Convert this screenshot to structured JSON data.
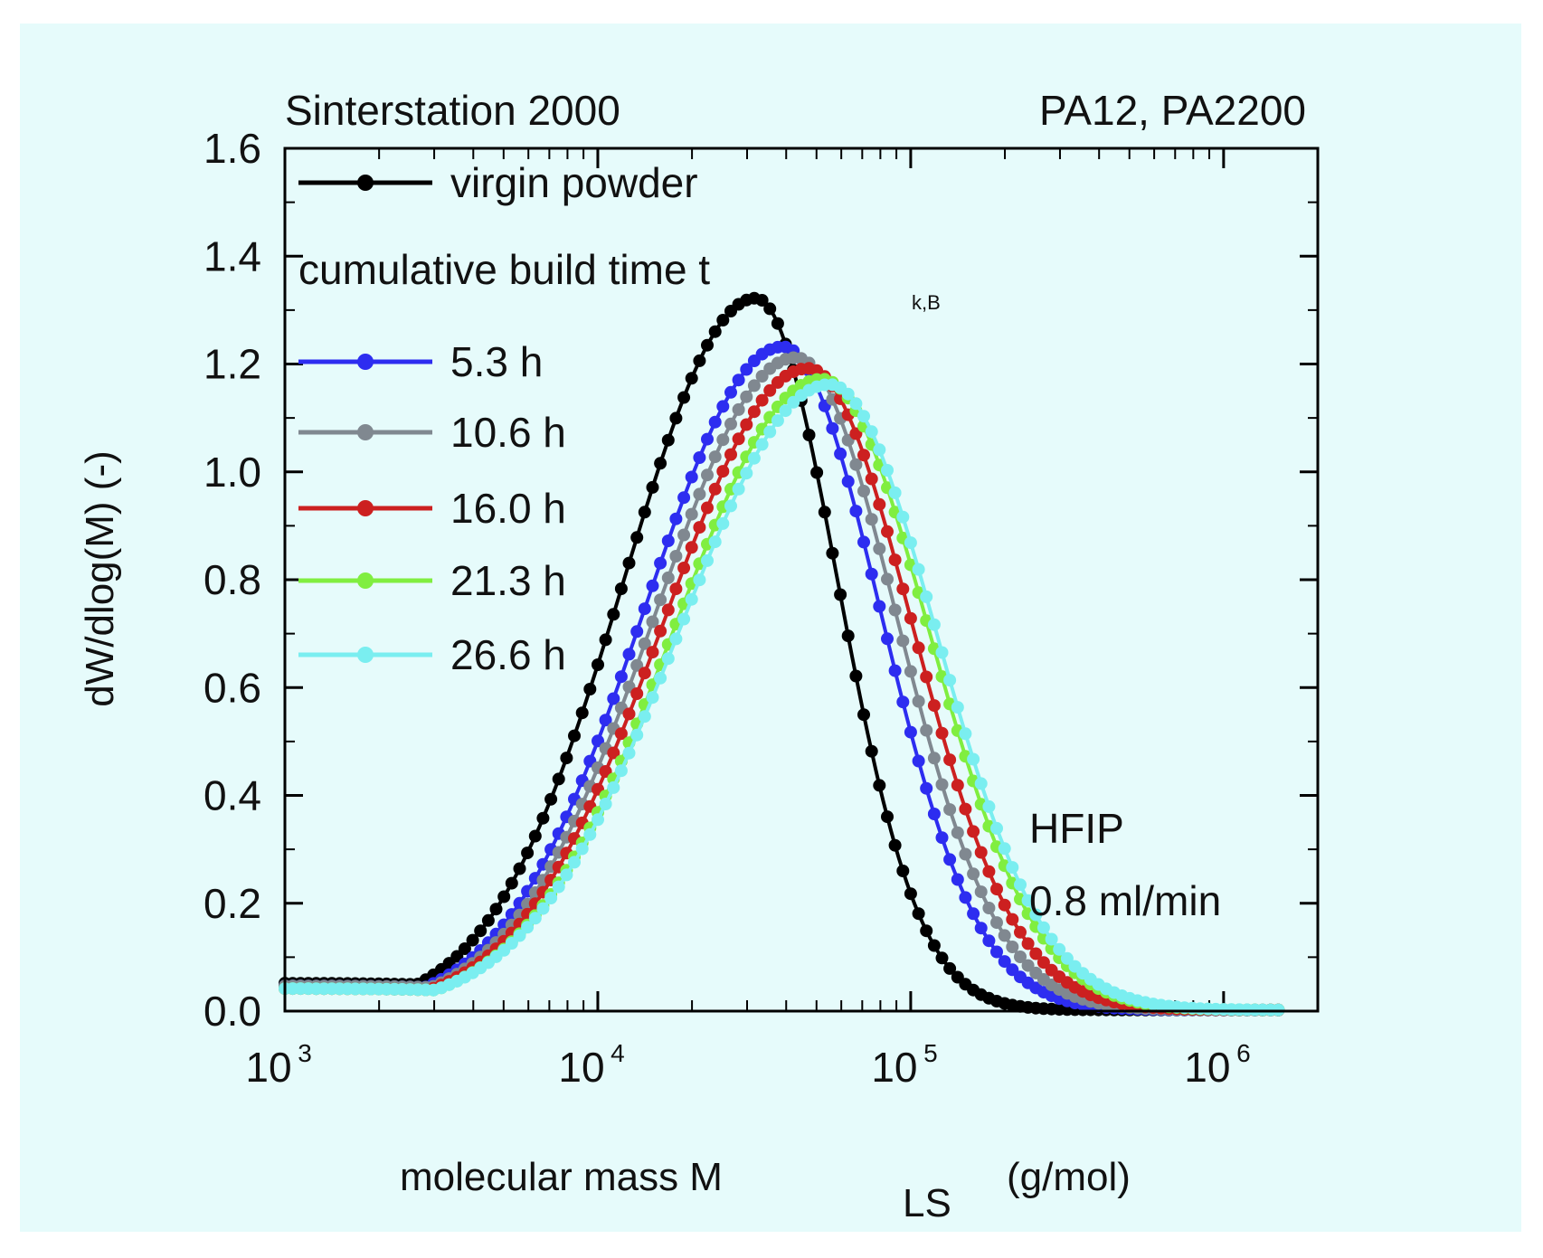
{
  "chart_data": {
    "type": "scatter",
    "title_left": "Sinterstation 2000",
    "title_right": "PA12, PA2200",
    "xlabel_main": "molecular mass M",
    "xlabel_sub": "LS",
    "xlabel_unit": "(g/mol)",
    "ylabel": "dW/dlog(M) (-)",
    "x_scale": "log",
    "xlim": [
      1000,
      2000000
    ],
    "ylim": [
      0,
      1.6
    ],
    "x_ticks": [
      {
        "base": "10",
        "exp": "3"
      },
      {
        "base": "10",
        "exp": "4"
      },
      {
        "base": "10",
        "exp": "5"
      },
      {
        "base": "10",
        "exp": "6"
      }
    ],
    "y_ticks": [
      "0.0",
      "0.2",
      "0.4",
      "0.6",
      "0.8",
      "1.0",
      "1.2",
      "1.4",
      "1.6"
    ],
    "legend_heading_main": "cumulative build time t",
    "legend_heading_sub": "k,B",
    "annotation_solvent": "HFIP",
    "annotation_flow": "0.8 ml/min",
    "legend_placement": "top-left",
    "series": [
      {
        "name": "virgin powder",
        "color": "#000000",
        "peak_x": 32000,
        "peak_y": 1.32,
        "sigma_left": 0.42,
        "sigma_right": 0.26,
        "tail_amp": 0.05
      },
      {
        "name": "5.3 h",
        "color": "#2d2df0",
        "peak_x": 39000,
        "peak_y": 1.23,
        "sigma_left": 0.44,
        "sigma_right": 0.31,
        "tail_amp": 0.045
      },
      {
        "name": "10.6 h",
        "color": "#808890",
        "peak_x": 43000,
        "peak_y": 1.21,
        "sigma_left": 0.45,
        "sigma_right": 0.32,
        "tail_amp": 0.045
      },
      {
        "name": "16.0 h",
        "color": "#cc2020",
        "peak_x": 47000,
        "peak_y": 1.19,
        "sigma_left": 0.46,
        "sigma_right": 0.33,
        "tail_amp": 0.04
      },
      {
        "name": "21.3 h",
        "color": "#80ee40",
        "peak_x": 52000,
        "peak_y": 1.17,
        "sigma_left": 0.47,
        "sigma_right": 0.34,
        "tail_amp": 0.04
      },
      {
        "name": "26.6 h",
        "color": "#7aeef0",
        "peak_x": 55000,
        "peak_y": 1.16,
        "sigma_left": 0.48,
        "sigma_right": 0.34,
        "tail_amp": 0.04
      }
    ]
  }
}
